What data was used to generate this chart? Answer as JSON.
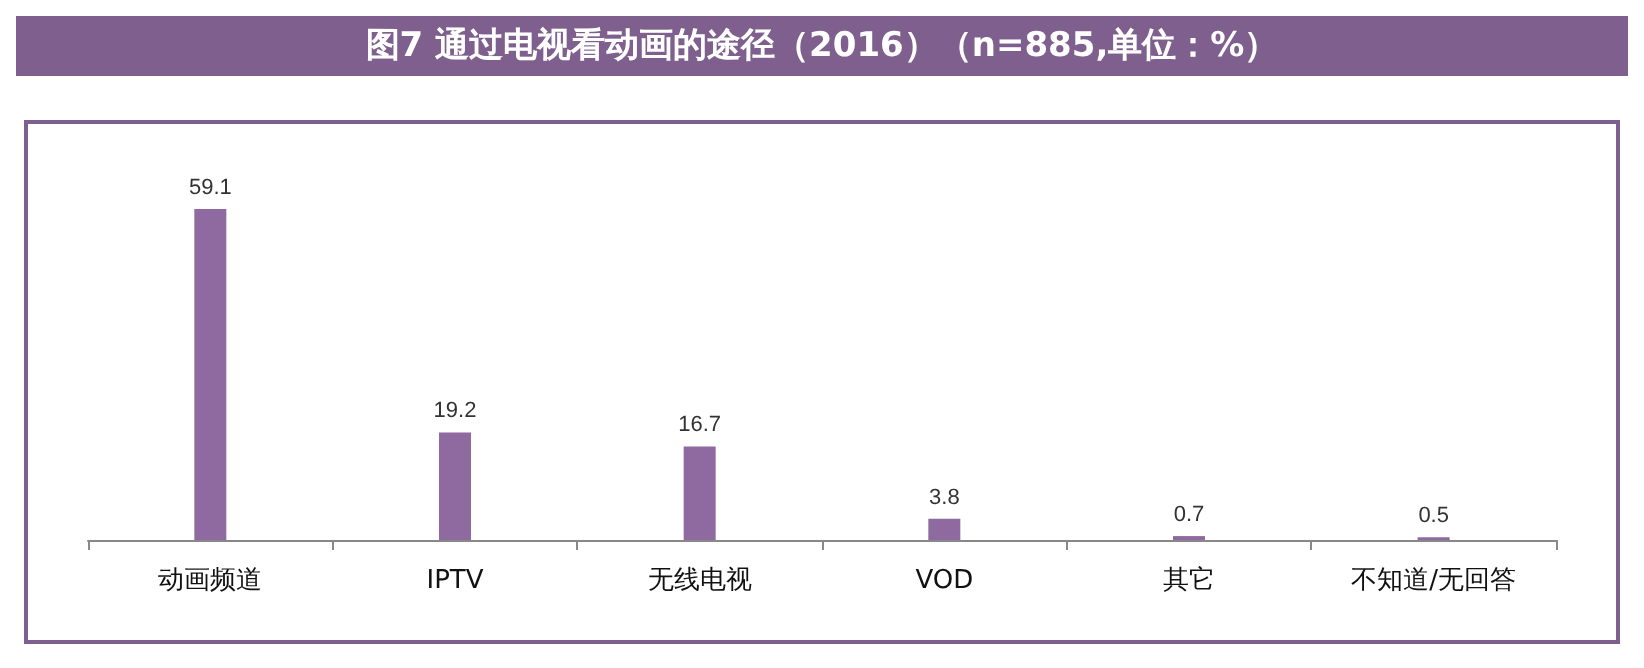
{
  "chart_data": {
    "type": "bar",
    "title": "图7 通过电视看动画的途径（2016）（n=885,单位：%）",
    "categories": [
      "动画频道",
      "IPTV",
      "无线电视",
      "VOD",
      "其它",
      "不知道/无回答"
    ],
    "values": [
      59.1,
      19.2,
      16.7,
      3.8,
      0.7,
      0.5
    ],
    "color": "#8e6aa0",
    "data_labels": true
  }
}
